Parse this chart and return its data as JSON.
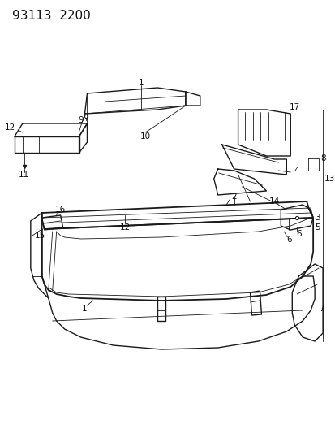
{
  "title": "93113  2200",
  "bg_color": "#ffffff",
  "line_color": "#1a1a1a",
  "label_color": "#111111",
  "label_fontsize": 7.5,
  "title_fontsize": 11
}
